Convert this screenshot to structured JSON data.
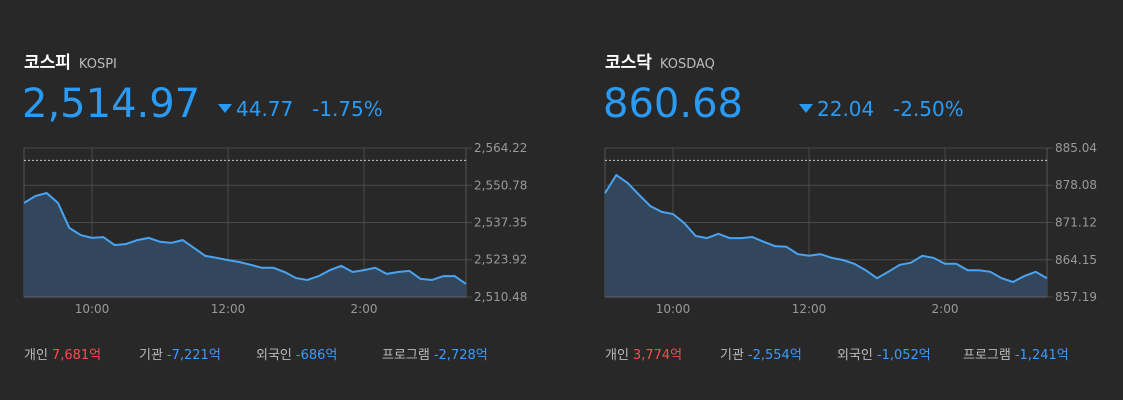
{
  "chart_data": [
    {
      "type": "area",
      "title": "코스피",
      "subtitle": "KOSPI",
      "price": "2,514.97",
      "change": "44.77",
      "change_pct": "-1.75%",
      "color": "#4aa3f0",
      "area_color": "#33475c",
      "reference_line": 2559.74,
      "categories": [
        null,
        null,
        null,
        null,
        null,
        null,
        "10:00",
        null,
        null,
        null,
        null,
        null,
        null,
        null,
        null,
        null,
        null,
        null,
        "12:00",
        null,
        null,
        null,
        null,
        null,
        null,
        null,
        null,
        null,
        null,
        null,
        "2:00",
        null,
        null,
        null,
        null,
        null,
        null,
        null,
        null,
        null
      ],
      "values": [
        2544.4,
        2546.9,
        2548.0,
        2544.4,
        2535.4,
        2532.8,
        2531.8,
        2532.1,
        2529.2,
        2529.6,
        2531.0,
        2531.8,
        2530.4,
        2530.0,
        2531.0,
        2528.2,
        2525.3,
        2524.6,
        2523.8,
        2523.1,
        2522.1,
        2521.0,
        2521.0,
        2519.5,
        2517.3,
        2516.6,
        2518.0,
        2520.2,
        2521.7,
        2519.5,
        2520.2,
        2521.0,
        2518.8,
        2519.5,
        2519.9,
        2517.0,
        2516.6,
        2518.0,
        2518.0,
        2515.2
      ],
      "ylim": [
        2510.48,
        2564.22
      ],
      "yticks": [
        {
          "value": 2564.22,
          "label": "2,564.22"
        },
        {
          "value": 2550.78,
          "label": "2,550.78"
        },
        {
          "value": 2537.35,
          "label": "2,537.35"
        },
        {
          "value": 2523.92,
          "label": "2,523.92"
        },
        {
          "value": 2510.48,
          "label": "2,510.48"
        }
      ],
      "grid": true,
      "flows": [
        {
          "label": "개인",
          "value": "7,681억",
          "color": "#ff4b4b"
        },
        {
          "label": "기관",
          "value": "-7,221억",
          "color": "#3d9bff"
        },
        {
          "label": "외국인",
          "value": "-686억",
          "color": "#3d9bff"
        },
        {
          "label": "프로그램",
          "value": "-2,728억",
          "color": "#3d9bff"
        }
      ]
    },
    {
      "type": "area",
      "title": "코스닥",
      "subtitle": "KOSDAQ",
      "price": "860.68",
      "change": "22.04",
      "change_pct": "-2.50%",
      "color": "#4aa3f0",
      "area_color": "#33475c",
      "reference_line": 882.72,
      "categories": [
        null,
        null,
        null,
        null,
        null,
        null,
        "10:00",
        null,
        null,
        null,
        null,
        null,
        null,
        null,
        null,
        null,
        null,
        null,
        "12:00",
        null,
        null,
        null,
        null,
        null,
        null,
        null,
        null,
        null,
        null,
        null,
        "2:00",
        null,
        null,
        null,
        null,
        null,
        null,
        null,
        null,
        null
      ],
      "values": [
        876.6,
        880.0,
        878.5,
        876.3,
        874.2,
        873.1,
        872.7,
        871.0,
        868.6,
        868.2,
        869.0,
        868.2,
        868.2,
        868.4,
        867.5,
        866.7,
        866.6,
        865.2,
        864.9,
        865.2,
        864.5,
        864.1,
        863.4,
        862.2,
        860.7,
        861.9,
        863.2,
        863.6,
        864.9,
        864.5,
        863.4,
        863.4,
        862.2,
        862.2,
        861.9,
        860.7,
        860.0,
        861.1,
        861.9,
        860.7
      ],
      "ylim": [
        857.19,
        885.04
      ],
      "yticks": [
        885.04,
        878.08,
        871.12,
        864.15,
        857.19
      ],
      "grid": true,
      "flows": [
        {
          "label": "개인",
          "value": "3,774억",
          "color": "#ff4b4b"
        },
        {
          "label": "기관",
          "value": "-2,554억",
          "color": "#3d9bff"
        },
        {
          "label": "외국인",
          "value": "-1,052억",
          "color": "#3d9bff"
        },
        {
          "label": "프로그램",
          "value": "-1,241억",
          "color": "#3d9bff"
        }
      ]
    }
  ]
}
